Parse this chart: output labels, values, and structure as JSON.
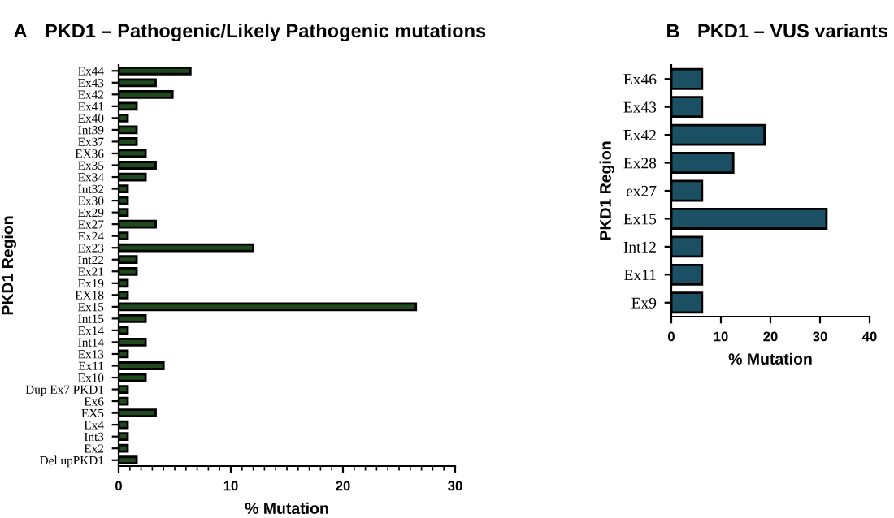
{
  "chart_data": [
    {
      "type": "bar",
      "orientation": "horizontal",
      "title": "PKD1 – Pathogenic/Likely Pathogenic mutations",
      "annotations": [
        "A"
      ],
      "xlabel": "% Mutation",
      "ylabel": "PKD1 Region",
      "color": "#1e4a1e",
      "categories": [
        "Ex44",
        "Ex43",
        "Ex42",
        "Ex41",
        "Ex40",
        "Int39",
        "Ex37",
        "EX36",
        "Ex35",
        "Ex34",
        "Int32",
        "Ex30",
        "Ex29",
        "Ex27",
        "Ex24",
        "Ex23",
        "Int22",
        "Ex21",
        "Ex19",
        "EX18",
        "Ex15",
        "Int15",
        "Ex14",
        "Int14",
        "Ex13",
        "Ex11",
        "Ex10",
        "Dup Ex7 PKD1",
        "Ex6",
        "EX5",
        "Ex4",
        "Int3",
        "Ex2",
        "Del upPKD1"
      ],
      "values": [
        6.4,
        3.3,
        4.8,
        1.6,
        0.8,
        1.6,
        1.6,
        2.4,
        3.3,
        2.4,
        0.8,
        0.8,
        0.8,
        3.3,
        0.8,
        12.0,
        1.6,
        1.6,
        0.8,
        0.8,
        26.5,
        2.4,
        0.8,
        2.4,
        0.8,
        4.0,
        2.4,
        0.8,
        0.8,
        3.3,
        0.8,
        0.8,
        0.8,
        1.6
      ],
      "xlim": [
        0,
        30
      ],
      "xticks": [
        0,
        10,
        20,
        30
      ],
      "grid": false,
      "legend": false
    },
    {
      "type": "bar",
      "orientation": "horizontal",
      "title": "PKD1 – VUS variants",
      "annotations": [
        "B"
      ],
      "xlabel": "% Mutation",
      "ylabel": "PKD1 Region",
      "color": "#1b4f63",
      "categories": [
        "Ex46",
        "Ex43",
        "Ex42",
        "Ex28",
        "ex27",
        "Ex15",
        "Int12",
        "Ex11",
        "Ex9"
      ],
      "values": [
        6.2,
        6.2,
        18.8,
        12.5,
        6.2,
        31.3,
        6.2,
        6.2,
        6.2
      ],
      "xlim": [
        0,
        40
      ],
      "xticks": [
        0,
        10,
        20,
        30,
        40
      ],
      "grid": false,
      "legend": false
    }
  ]
}
